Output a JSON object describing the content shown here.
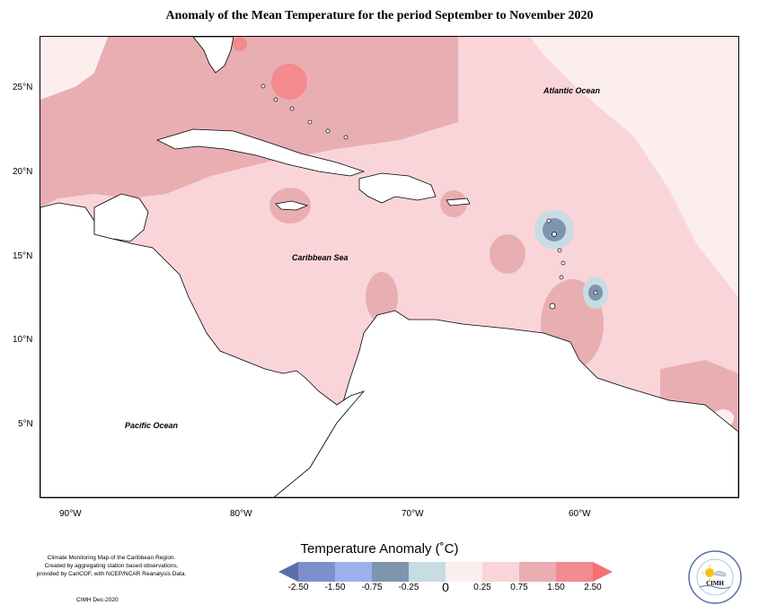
{
  "title": "Anomaly of the Mean Temperature for the period September to November 2020",
  "labels": {
    "atlantic": "Atlantic Ocean",
    "caribbean": "Caribbean Sea",
    "pacific": "Pacific Ocean"
  },
  "axes": {
    "lat_ticks": [
      "25°N",
      "20°N",
      "15°N",
      "10°N",
      "5°N"
    ],
    "lon_ticks": [
      "90°W",
      "80°W",
      "70°W",
      "60°W"
    ]
  },
  "legend": {
    "title": "Temperature Anomaly (˚C)",
    "classes": [
      {
        "color": "#5a6ea8"
      },
      {
        "color": "#7d90cc"
      },
      {
        "color": "#9cb0ee"
      },
      {
        "color": "#7f95ad"
      },
      {
        "color": "#c8dce4"
      },
      {
        "color": "#fdeeee"
      },
      {
        "color": "#f9d5d9"
      },
      {
        "color": "#e9aeb2"
      },
      {
        "color": "#f28a8e"
      },
      {
        "color": "#f56f73"
      }
    ],
    "labels": [
      "-2.50",
      "-1.50",
      "-0.75",
      "-0.25",
      "0",
      "0.25",
      "0.75",
      "1.50",
      "2.50"
    ]
  },
  "credits": {
    "line1": "Climate Monitoring Map of the Caribbean Region.",
    "line2": "Created by aggregating station based observations,",
    "line3": "provided by CariCOF, with NCEP/NCAR Reanalysis Data.",
    "date": "CIMH Dec-2020"
  },
  "logo": {
    "text": "CIMH",
    "ring_text": "Caribbean Institute for Meteorology and Hydrology"
  },
  "colors": {
    "background_anomaly": "#f9d5d9",
    "warm_anomaly": "#e9aeb2",
    "hot_anomaly": "#f28a8e",
    "cool_anomaly": "#c8dce4",
    "cold_anomaly": "#7f95ad"
  }
}
